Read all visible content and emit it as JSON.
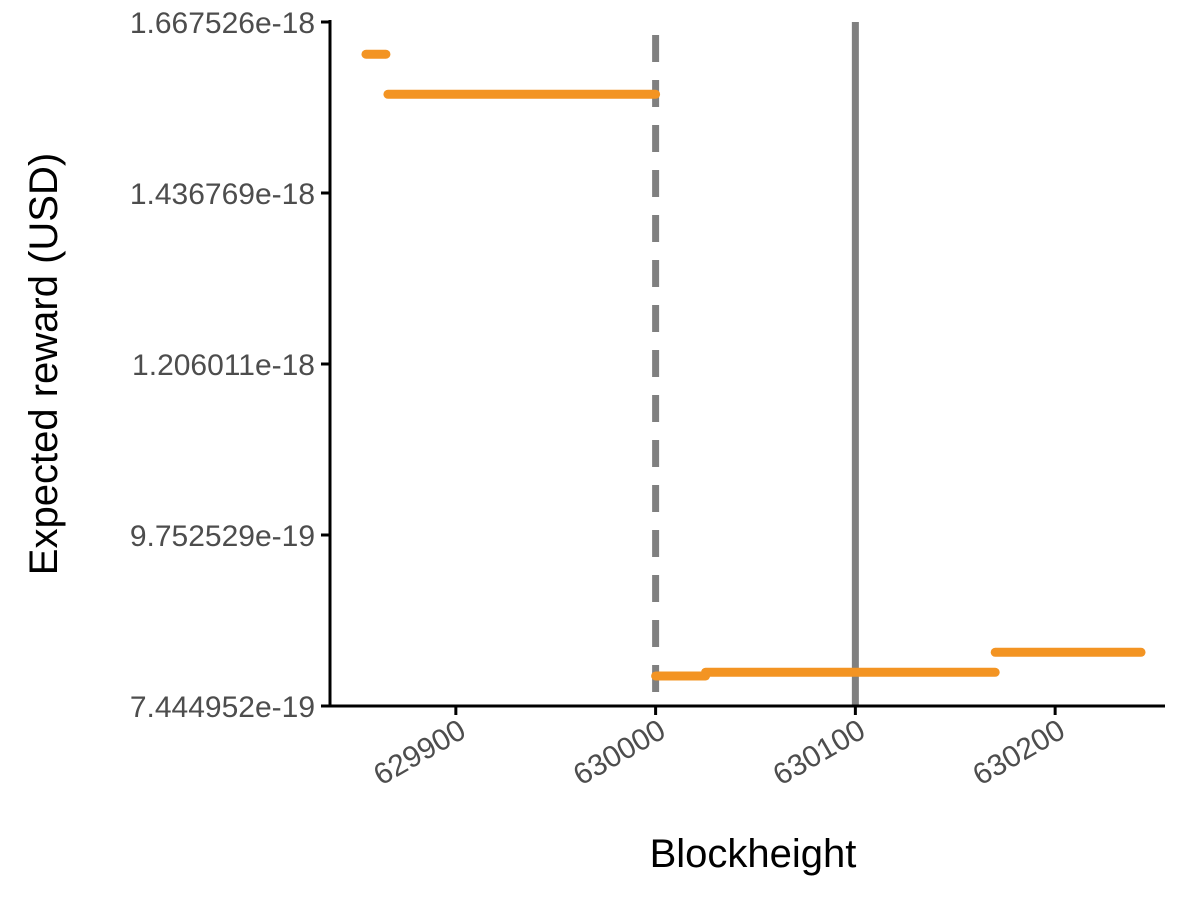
{
  "chart_data": {
    "type": "line",
    "title": "",
    "xlabel": "Blockheight",
    "ylabel": "Expected reward (USD)",
    "xlim": [
      629837,
      630255
    ],
    "ylim": [
      7.444952e-19,
      1.667526e-18
    ],
    "x_ticks": [
      629900,
      630000,
      630100,
      630200
    ],
    "x_tick_labels": [
      "629900",
      "630000",
      "630100",
      "630200"
    ],
    "y_ticks": [
      7.444952e-19,
      9.752529e-19,
      1.206011e-18,
      1.436769e-18,
      1.667526e-18
    ],
    "y_tick_labels": [
      "7.444952e-19",
      "9.752529e-19",
      "1.206011e-18",
      "1.436769e-18",
      "1.667526e-18"
    ],
    "grid": false,
    "legend": "none",
    "series_color": "#F39423",
    "reference_line_color": "#808080",
    "reference_lines": [
      {
        "x": 630000,
        "style": "dashed"
      },
      {
        "x": 630100,
        "style": "solid"
      }
    ],
    "segments": [
      {
        "x_start": 629855,
        "x_end": 629865,
        "y": 1.624e-18
      },
      {
        "x_start": 629866,
        "x_end": 630000,
        "y": 1.57e-18
      },
      {
        "x_start": 630000,
        "x_end": 630025,
        "y": 7.85e-19
      },
      {
        "x_start": 630025,
        "x_end": 630170,
        "y": 7.9e-19
      },
      {
        "x_start": 630170,
        "x_end": 630243,
        "y": 8.17e-19
      }
    ]
  }
}
